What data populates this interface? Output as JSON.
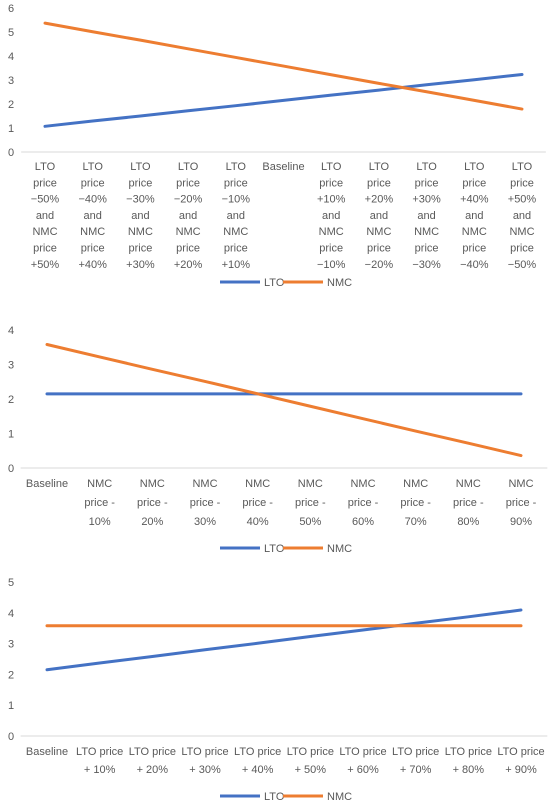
{
  "colors": {
    "LTO": "#4472C4",
    "NMC": "#ED7D31",
    "grid": "#d9d9d9",
    "text": "#595959"
  },
  "chart_data": [
    {
      "type": "line",
      "title": "",
      "xlabel": "",
      "ylabel": "",
      "ylim": [
        0,
        6
      ],
      "yticks": [
        "0",
        "1",
        "2",
        "3",
        "4",
        "5",
        "6"
      ],
      "grid": false,
      "legend_position": "bottom",
      "categories": [
        "LTO price −50% and NMC price +50%",
        "LTO price −40% and NMC price +40%",
        "LTO price −30% and NMC price +30%",
        "LTO price −20% and NMC price +20%",
        "LTO price −10% and NMC price +10%",
        "Baseline",
        "LTO price +10% and NMC price −10%",
        "LTO price +20% and NMC price −20%",
        "LTO price +30% and NMC price −30%",
        "LTO price +40% and NMC price −40%",
        "LTO price +50% and NMC price −50%"
      ],
      "category_lines": [
        [
          "LTO",
          "price",
          "−50%",
          "and",
          "NMC",
          "price",
          "+50%"
        ],
        [
          "LTO",
          "price",
          "−40%",
          "and",
          "NMC",
          "price",
          "+40%"
        ],
        [
          "LTO",
          "price",
          "−30%",
          "and",
          "NMC",
          "price",
          "+30%"
        ],
        [
          "LTO",
          "price",
          "−20%",
          "and",
          "NMC",
          "price",
          "+20%"
        ],
        [
          "LTO",
          "price",
          "−10%",
          "and",
          "NMC",
          "price",
          "+10%"
        ],
        [
          "Baseline"
        ],
        [
          "LTO",
          "price",
          "+10%",
          "and",
          "NMC",
          "price",
          "−10%"
        ],
        [
          "LTO",
          "price",
          "+20%",
          "and",
          "NMC",
          "price",
          "−20%"
        ],
        [
          "LTO",
          "price",
          "+30%",
          "and",
          "NMC",
          "price",
          "−30%"
        ],
        [
          "LTO",
          "price",
          "+40%",
          "and",
          "NMC",
          "price",
          "−40%"
        ],
        [
          "LTO",
          "price",
          "+50%",
          "and",
          "NMC",
          "price",
          "−50%"
        ]
      ],
      "series": [
        {
          "name": "LTO",
          "values": [
            1.07,
            1.29,
            1.5,
            1.72,
            1.93,
            2.15,
            2.37,
            2.58,
            2.8,
            3.01,
            3.23
          ]
        },
        {
          "name": "NMC",
          "values": [
            5.37,
            5.01,
            4.66,
            4.3,
            3.94,
            3.58,
            3.22,
            2.86,
            2.51,
            2.15,
            1.79
          ]
        }
      ]
    },
    {
      "type": "line",
      "title": "",
      "xlabel": "",
      "ylabel": "",
      "ylim": [
        0,
        4
      ],
      "yticks": [
        "0",
        "1",
        "2",
        "3",
        "4"
      ],
      "grid": false,
      "legend_position": "bottom",
      "categories": [
        "Baseline",
        "NMC price - 10%",
        "NMC price - 20%",
        "NMC price - 30%",
        "NMC price - 40%",
        "NMC price - 50%",
        "NMC price - 60%",
        "NMC price - 70%",
        "NMC price - 80%",
        "NMC price - 90%"
      ],
      "category_lines": [
        [
          "Baseline"
        ],
        [
          "NMC",
          "price -",
          "10%"
        ],
        [
          "NMC",
          "price -",
          "20%"
        ],
        [
          "NMC",
          "price -",
          "30%"
        ],
        [
          "NMC",
          "price -",
          "40%"
        ],
        [
          "NMC",
          "price -",
          "50%"
        ],
        [
          "NMC",
          "price -",
          "60%"
        ],
        [
          "NMC",
          "price -",
          "70%"
        ],
        [
          "NMC",
          "price -",
          "80%"
        ],
        [
          "NMC",
          "price -",
          "90%"
        ]
      ],
      "series": [
        {
          "name": "LTO",
          "values": [
            2.15,
            2.15,
            2.15,
            2.15,
            2.15,
            2.15,
            2.15,
            2.15,
            2.15,
            2.15
          ]
        },
        {
          "name": "NMC",
          "values": [
            3.58,
            3.22,
            2.86,
            2.51,
            2.15,
            1.79,
            1.43,
            1.07,
            0.72,
            0.36
          ]
        }
      ]
    },
    {
      "type": "line",
      "title": "",
      "xlabel": "",
      "ylabel": "",
      "ylim": [
        0,
        5
      ],
      "yticks": [
        "0",
        "1",
        "2",
        "3",
        "4",
        "5"
      ],
      "grid": false,
      "legend_position": "bottom",
      "categories": [
        "Baseline",
        "LTO price + 10%",
        "LTO price + 20%",
        "LTO price + 30%",
        "LTO price + 40%",
        "LTO price + 50%",
        "LTO price + 60%",
        "LTO price + 70%",
        "LTO price + 80%",
        "LTO price + 90%"
      ],
      "category_lines": [
        [
          "Baseline"
        ],
        [
          "LTO price",
          "+ 10%"
        ],
        [
          "LTO price",
          "+ 20%"
        ],
        [
          "LTO price",
          "+ 30%"
        ],
        [
          "LTO price",
          "+ 40%"
        ],
        [
          "LTO price",
          "+ 50%"
        ],
        [
          "LTO price",
          "+ 60%"
        ],
        [
          "LTO price",
          "+ 70%"
        ],
        [
          "LTO price",
          "+ 80%"
        ],
        [
          "LTO price",
          "+ 90%"
        ]
      ],
      "series": [
        {
          "name": "LTO",
          "values": [
            2.15,
            2.37,
            2.58,
            2.8,
            3.01,
            3.23,
            3.44,
            3.66,
            3.87,
            4.09
          ]
        },
        {
          "name": "NMC",
          "values": [
            3.58,
            3.58,
            3.58,
            3.58,
            3.58,
            3.58,
            3.58,
            3.58,
            3.58,
            3.58
          ]
        }
      ]
    }
  ]
}
